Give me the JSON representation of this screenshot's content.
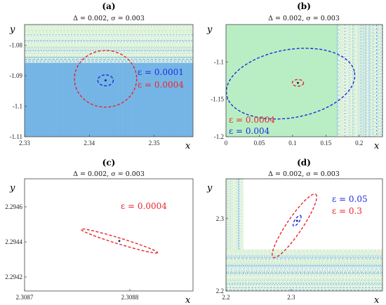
{
  "figure": {
    "panels": [
      {
        "title": "(a)",
        "subtitle": "Δ = 0.002, σ = 0.003"
      },
      {
        "title": "(b)",
        "subtitle": "Δ = 0.002, σ = 0.003"
      },
      {
        "title": "(c)",
        "subtitle": "Δ = 0.002, σ = 0.003"
      },
      {
        "title": "(d)",
        "subtitle": "Δ = 0.002, σ = 0.003"
      }
    ]
  },
  "colors": {
    "blue_region": "#79b8e8",
    "green_region": "#b9eec4",
    "stripe_blue": "#4a9fd4",
    "stripe_green": "#b6e6a8",
    "ellipse_red": "#e8252b",
    "ellipse_blue": "#1a2ee0"
  },
  "chart_data": [
    {
      "type": "scatter",
      "title": "(a)",
      "subtitle": "Δ = 0.002, σ = 0.003",
      "xlabel": "x",
      "ylabel": "y",
      "xlim": [
        2.33,
        2.356
      ],
      "ylim": [
        -1.11,
        -1.0732
      ],
      "xticks": [
        2.33,
        2.34,
        2.35
      ],
      "xticklabels": [
        "2.33",
        "2.34",
        "2.35"
      ],
      "yticks": [
        -1.08,
        -1.09,
        -1.1,
        -1.11
      ],
      "yticklabels": [
        "-1.08",
        "-1.09",
        "-1.1",
        "-1.11"
      ],
      "regions": [
        {
          "kind": "solid",
          "color": "blue",
          "ymax": -1.0857
        },
        {
          "kind": "scattered-horizontal",
          "ymin": -1.0857
        }
      ],
      "center": [
        2.3425,
        -1.0915
      ],
      "ellipses": [
        {
          "epsilon_label": "ε = 0.0001",
          "color": "blue",
          "cx": 2.3425,
          "cy": -1.0915,
          "rx": 0.0012,
          "ry": 0.0018
        },
        {
          "epsilon_label": "ε = 0.0004",
          "color": "red",
          "cx": 2.3425,
          "cy": -1.091,
          "rx": 0.0048,
          "ry": 0.0093
        }
      ]
    },
    {
      "type": "scatter",
      "title": "(b)",
      "subtitle": "Δ = 0.002, σ = 0.003",
      "xlabel": "x",
      "ylabel": "y",
      "xlim": [
        0,
        0.235
      ],
      "ylim": [
        -1.2,
        -1.05
      ],
      "xticks": [
        0,
        0.05,
        0.1,
        0.15,
        0.2
      ],
      "xticklabels": [
        "0",
        "0.05",
        "0.1",
        "0.15",
        "0.2"
      ],
      "yticks": [
        -1.1,
        -1.15,
        -1.2
      ],
      "yticklabels": [
        "-1.1",
        "-1.15",
        "-1.2"
      ],
      "regions": [
        {
          "kind": "solid",
          "color": "green",
          "xmax": 0.167
        },
        {
          "kind": "scattered-vertical",
          "xmin": 0.167
        }
      ],
      "center": [
        0.108,
        -1.128
      ],
      "ellipses": [
        {
          "epsilon_label": "ε = 0.0004",
          "color": "red",
          "cx": 0.108,
          "cy": -1.128,
          "rx": 0.0085,
          "ry": 0.0045
        },
        {
          "epsilon_label": "ε = 0.004",
          "color": "blue",
          "cx": 0.097,
          "cy": -1.129,
          "rx": 0.0975,
          "ry": 0.0455,
          "angle_deg": 10
        }
      ]
    },
    {
      "type": "scatter",
      "title": "(c)",
      "subtitle": "Δ = 0.002, σ = 0.003",
      "xlabel": "x",
      "ylabel": "y",
      "xlim": [
        2.3087,
        2.30886
      ],
      "ylim": [
        2.29412,
        2.29476
      ],
      "xticks": [
        2.3087,
        2.3088
      ],
      "xticklabels": [
        "2.3087",
        "2.3088"
      ],
      "yticks": [
        2.2946,
        2.2944,
        2.2942
      ],
      "yticklabels": [
        "2.2946",
        "2.2944",
        "2.2942"
      ],
      "regions": [],
      "center": [
        2.30879,
        2.294405
      ],
      "ellipses": [
        {
          "epsilon_label": "ε = 0.0004",
          "color": "red",
          "cx": 2.30879,
          "cy": 2.294405,
          "rx": 3.8e-05,
          "ry": 1.7e-05,
          "angle_deg": -17
        }
      ]
    },
    {
      "type": "scatter",
      "title": "(d)",
      "subtitle": "Δ = 0.002, σ = 0.003",
      "xlabel": "x",
      "ylabel": "y",
      "xlim": [
        2.2,
        2.44
      ],
      "ylim": [
        2.2,
        2.355
      ],
      "xticks": [
        2.2,
        2.3
      ],
      "xticklabels": [
        "2.2",
        "2.3"
      ],
      "yticks": [
        2.3,
        2.2
      ],
      "yticklabels": [
        "2.3",
        "2.2"
      ],
      "regions": [
        {
          "kind": "scattered-vertical",
          "xmax": 2.227
        },
        {
          "kind": "scattered-horizontal",
          "ymax": 2.257
        }
      ],
      "center": [
        2.309,
        2.297
      ],
      "ellipses": [
        {
          "epsilon_label": "ε = 0.05",
          "color": "blue",
          "cx": 2.309,
          "cy": 2.297,
          "rx": 0.0097,
          "ry": 0.0031,
          "angle_deg": 56
        },
        {
          "epsilon_label": "ε = 0.3",
          "color": "red",
          "cx": 2.305,
          "cy": 2.29,
          "rx": 0.0585,
          "ry": 0.0107,
          "angle_deg": 56
        }
      ]
    }
  ]
}
